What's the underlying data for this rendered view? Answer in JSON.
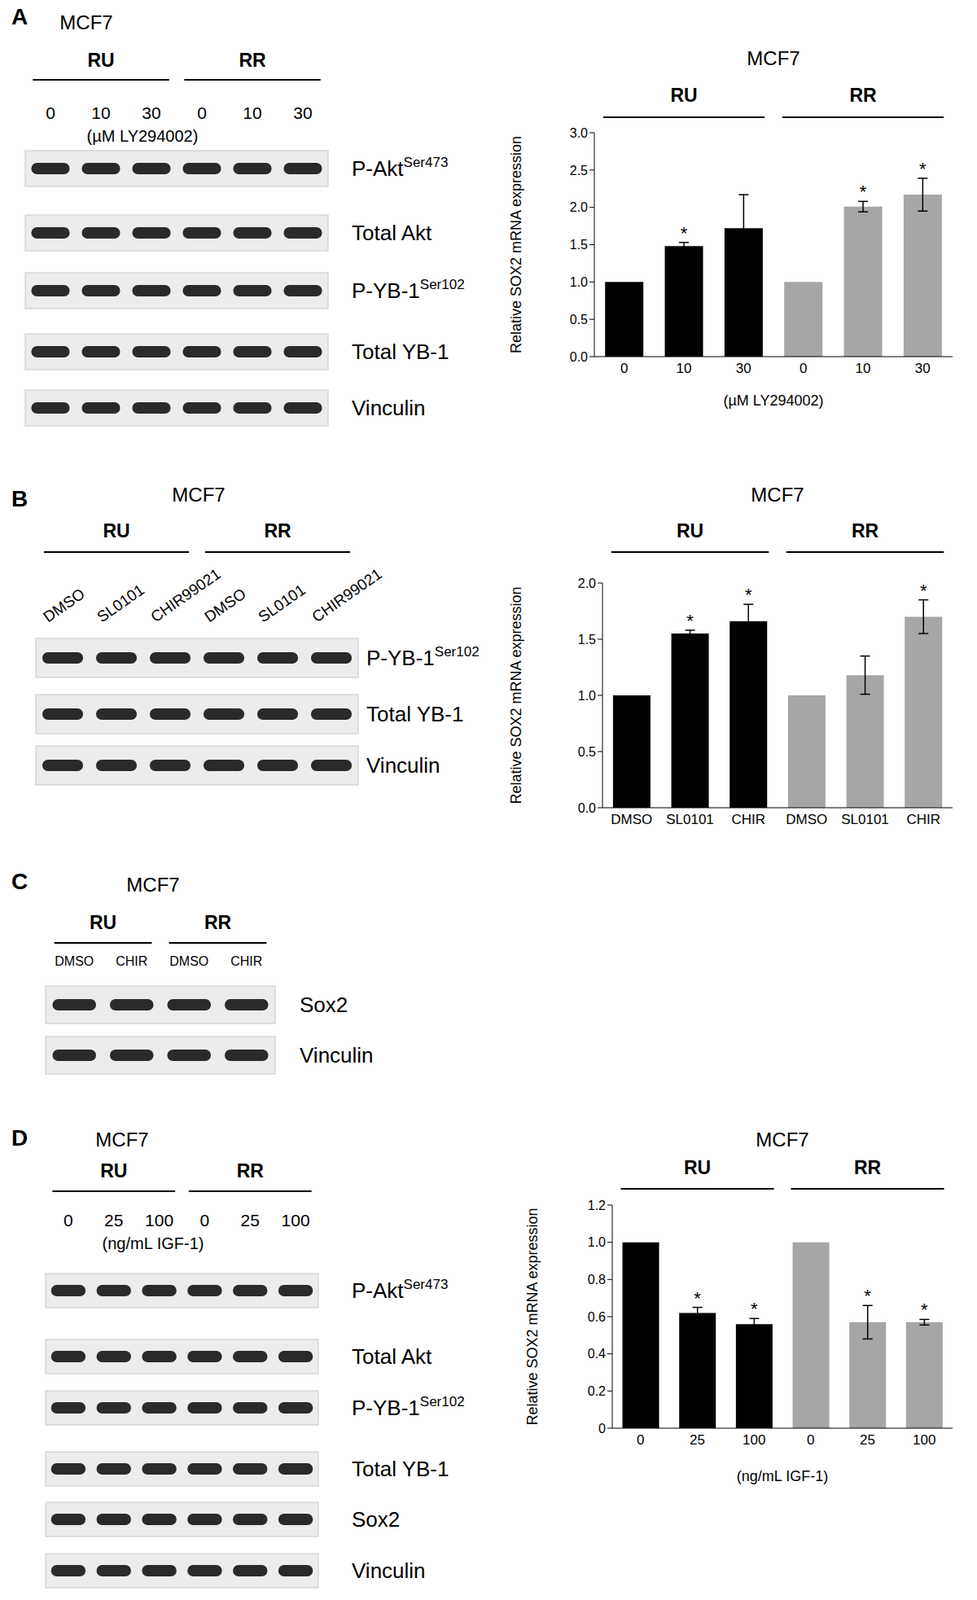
{
  "panels": [
    {
      "label": "A",
      "blot": {
        "title": "MCF7",
        "groups": [
          "RU",
          "RR"
        ],
        "lanes": [
          "0",
          "10",
          "30",
          "0",
          "10",
          "30"
        ],
        "lane_note": "(µM LY294002)",
        "rows": [
          {
            "text": "P-Akt",
            "sup": "Ser473"
          },
          {
            "text": "Total Akt"
          },
          {
            "text": "P-YB-1",
            "sup": "Ser102"
          },
          {
            "text": "Total YB-1"
          },
          {
            "text": "Vinculin"
          }
        ]
      }
    },
    {
      "label": "B",
      "blot": {
        "title": "MCF7",
        "groups": [
          "RU",
          "RR"
        ],
        "lanes": [
          "DMSO",
          "SL0101",
          "CHIR99021",
          "DMSO",
          "SL0101",
          "CHIR99021"
        ],
        "rows": [
          {
            "text": "P-YB-1",
            "sup": "Ser102"
          },
          {
            "text": "Total YB-1"
          },
          {
            "text": "Vinculin"
          }
        ]
      }
    },
    {
      "label": "C",
      "blot": {
        "title": "MCF7",
        "groups": [
          "RU",
          "RR"
        ],
        "lanes": [
          "DMSO",
          "CHIR",
          "DMSO",
          "CHIR"
        ],
        "rows": [
          {
            "text": "Sox2"
          },
          {
            "text": "Vinculin"
          }
        ]
      }
    },
    {
      "label": "D",
      "blot": {
        "title": "MCF7",
        "groups": [
          "RU",
          "RR"
        ],
        "lanes": [
          "0",
          "25",
          "100",
          "0",
          "25",
          "100"
        ],
        "lane_note": "(ng/mL IGF-1)",
        "rows": [
          {
            "text": "P-Akt",
            "sup": "Ser473"
          },
          {
            "text": "Total Akt"
          },
          {
            "text": "P-YB-1",
            "sup": "Ser102"
          },
          {
            "text": "Total YB-1"
          },
          {
            "text": "Sox2"
          },
          {
            "text": "Vinculin"
          }
        ]
      }
    }
  ],
  "chart_data": [
    {
      "type": "bar",
      "title": "MCF7",
      "groups": [
        "RU",
        "RR"
      ],
      "categories": [
        "0",
        "10",
        "30",
        "0",
        "10",
        "30"
      ],
      "x_label": "(µM LY294002)",
      "y_label": "Relative SOX2 mRNA expression",
      "values": [
        1,
        1.48,
        1.72,
        1,
        2.01,
        2.17
      ],
      "errors": [
        0,
        0.05,
        0.45,
        0,
        0.07,
        0.22
      ],
      "annotations": [
        null,
        "*",
        null,
        null,
        "*",
        "*"
      ],
      "colors": [
        "#000000",
        "#000000",
        "#000000",
        "#a6a6a6",
        "#a6a6a6",
        "#a6a6a6"
      ],
      "ylim": [
        0,
        3
      ],
      "yticks": [
        {
          "value": 0,
          "label": "0.0"
        },
        0.5,
        {
          "value": 1,
          "label": "1.0"
        },
        1.5,
        {
          "value": 2,
          "label": "2.0"
        },
        2.5,
        {
          "value": 3,
          "label": "3.0"
        }
      ]
    },
    {
      "type": "bar",
      "title": "MCF7",
      "groups": [
        "RU",
        "RR"
      ],
      "categories": [
        "DMSO",
        "SL0101",
        "CHIR",
        "DMSO",
        "SL0101",
        "CHIR"
      ],
      "y_label": "Relative SOX2 mRNA expression",
      "values": [
        1,
        1.55,
        1.66,
        1,
        1.18,
        1.7
      ],
      "errors": [
        0,
        0.03,
        0.15,
        0,
        0.17,
        0.15
      ],
      "annotations": [
        null,
        "*",
        "*",
        null,
        null,
        "*"
      ],
      "colors": [
        "#000000",
        "#000000",
        "#000000",
        "#a6a6a6",
        "#a6a6a6",
        "#a6a6a6"
      ],
      "ylim": [
        0,
        2
      ],
      "yticks": [
        {
          "value": 0,
          "label": "0.0"
        },
        0.5,
        {
          "value": 1,
          "label": "1.0"
        },
        1.5,
        {
          "value": 2,
          "label": "2.0"
        }
      ]
    },
    {
      "type": "bar",
      "title": "MCF7",
      "groups": [
        "RU",
        "RR"
      ],
      "categories": [
        "0",
        "25",
        "100",
        "0",
        "25",
        "100"
      ],
      "x_label": "(ng/mL IGF-1)",
      "y_label": "Relative SOX2 mRNA expression",
      "values": [
        1,
        0.62,
        0.56,
        1,
        0.57,
        0.57
      ],
      "errors": [
        0,
        0.03,
        0.03,
        0,
        0.09,
        0.015
      ],
      "annotations": [
        null,
        "*",
        "*",
        null,
        "*",
        "*"
      ],
      "colors": [
        "#000000",
        "#000000",
        "#000000",
        "#a6a6a6",
        "#a6a6a6",
        "#a6a6a6"
      ],
      "ylim": [
        0,
        1.2
      ],
      "yticks": [
        0,
        0.2,
        0.4,
        0.6,
        0.8,
        {
          "value": 1,
          "label": "1.0"
        },
        1.2
      ]
    }
  ]
}
